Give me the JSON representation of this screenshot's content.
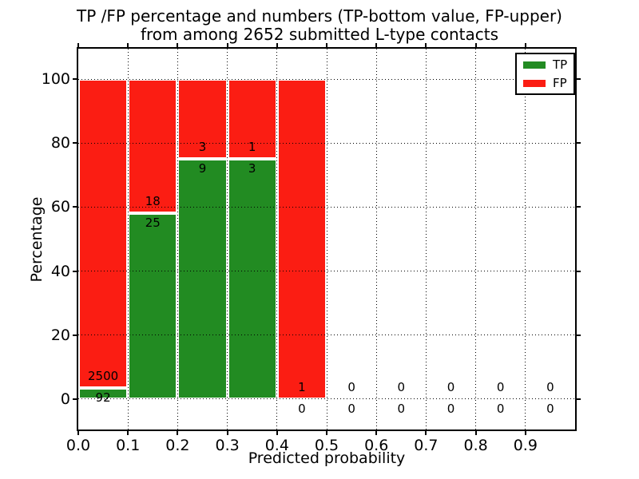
{
  "title": {
    "line1": "TP /FP percentage and numbers (TP-bottom value, FP-upper)",
    "line2": "from among 2652 submitted L-type contacts"
  },
  "colors": {
    "tp": "#228b22",
    "fp": "#fb1d13",
    "grid": "#000000",
    "background": "#ffffff"
  },
  "legend": {
    "items": [
      {
        "label": "TP",
        "color_key": "tp"
      },
      {
        "label": "FP",
        "color_key": "fp"
      }
    ]
  },
  "chart_data": {
    "type": "bar",
    "stacked": true,
    "title": "TP /FP percentage and numbers (TP-bottom value, FP-upper)\nfrom among 2652 submitted L-type contacts",
    "xlabel": "Predicted probability",
    "ylabel": "Percentage",
    "x_ticks": [
      "0.0",
      "0.1",
      "0.2",
      "0.3",
      "0.4",
      "0.5",
      "0.6",
      "0.7",
      "0.8",
      "0.9"
    ],
    "y_ticks": [
      0,
      20,
      40,
      60,
      80,
      100
    ],
    "xlim": [
      0.0,
      1.0
    ],
    "ylim": [
      -9.5,
      109.5
    ],
    "grid": true,
    "grid_style": "dotted",
    "legend_position": "upper right",
    "total_contacts": 2652,
    "bins": [
      {
        "range": [
          0.0,
          0.1
        ],
        "tp_count": 92,
        "fp_count": 2500,
        "tp_pct": 3.55,
        "fp_pct": 96.45
      },
      {
        "range": [
          0.1,
          0.2
        ],
        "tp_count": 25,
        "fp_count": 18,
        "tp_pct": 58.14,
        "fp_pct": 41.86
      },
      {
        "range": [
          0.2,
          0.3
        ],
        "tp_count": 9,
        "fp_count": 3,
        "tp_pct": 75.0,
        "fp_pct": 25.0
      },
      {
        "range": [
          0.3,
          0.4
        ],
        "tp_count": 3,
        "fp_count": 1,
        "tp_pct": 75.0,
        "fp_pct": 25.0
      },
      {
        "range": [
          0.4,
          0.5
        ],
        "tp_count": 0,
        "fp_count": 1,
        "tp_pct": 0.0,
        "fp_pct": 100.0
      },
      {
        "range": [
          0.5,
          0.6
        ],
        "tp_count": 0,
        "fp_count": 0,
        "tp_pct": 0.0,
        "fp_pct": 0.0
      },
      {
        "range": [
          0.6,
          0.7
        ],
        "tp_count": 0,
        "fp_count": 0,
        "tp_pct": 0.0,
        "fp_pct": 0.0
      },
      {
        "range": [
          0.7,
          0.8
        ],
        "tp_count": 0,
        "fp_count": 0,
        "tp_pct": 0.0,
        "fp_pct": 0.0
      },
      {
        "range": [
          0.8,
          0.9
        ],
        "tp_count": 0,
        "fp_count": 0,
        "tp_pct": 0.0,
        "fp_pct": 0.0
      },
      {
        "range": [
          0.9,
          1.0
        ],
        "tp_count": 0,
        "fp_count": 0,
        "tp_pct": 0.0,
        "fp_pct": 0.0
      }
    ],
    "series": [
      {
        "name": "TP",
        "values": [
          3.55,
          58.14,
          75.0,
          75.0,
          0.0,
          0.0,
          0.0,
          0.0,
          0.0,
          0.0
        ]
      },
      {
        "name": "FP",
        "values": [
          96.45,
          41.86,
          25.0,
          25.0,
          100.0,
          0.0,
          0.0,
          0.0,
          0.0,
          0.0
        ]
      }
    ]
  }
}
